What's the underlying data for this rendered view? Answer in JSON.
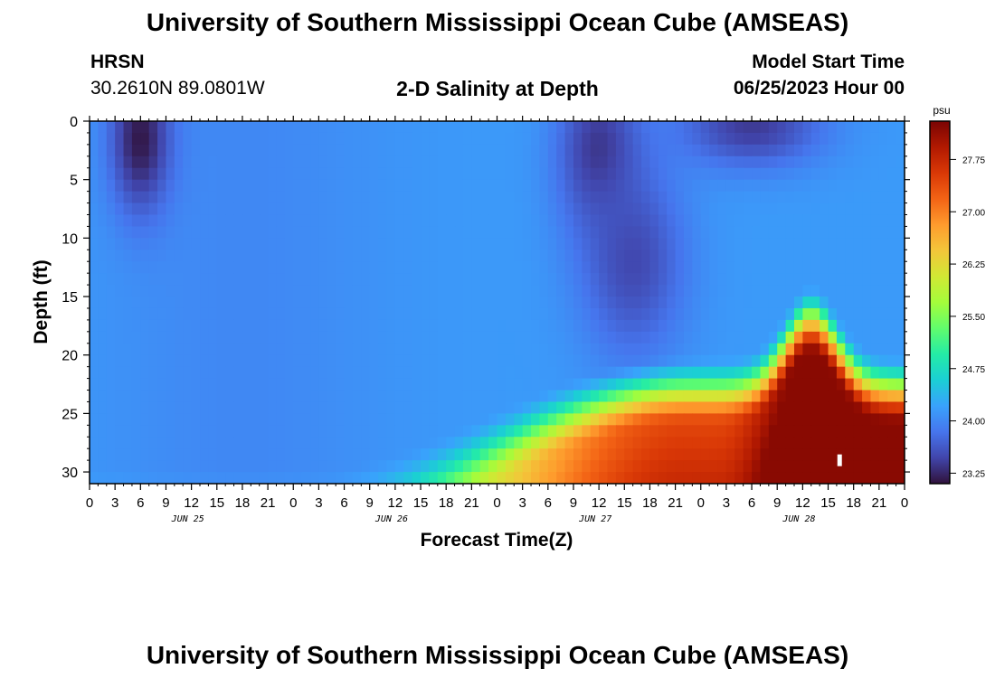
{
  "page": {
    "title": "University of Southern Mississippi Ocean Cube (AMSEAS)",
    "footer_title": "University of Southern Mississippi Ocean Cube (AMSEAS)",
    "station_name": "HRSN",
    "station_coords": "30.2610N  89.0801W",
    "subtitle": "2-D Salinity at Depth",
    "model_start_label": "Model Start Time",
    "model_start_value": "06/25/2023 Hour 00"
  },
  "chart_data": {
    "type": "heatmap",
    "xlabel": "Forecast Time(Z)",
    "ylabel": "Depth (ft)",
    "colorbar_unit": "psu",
    "x_hours_range": [
      0,
      96
    ],
    "x_tick_labels": [
      "0",
      "3",
      "6",
      "9",
      "12",
      "15",
      "18",
      "21",
      "0",
      "3",
      "6",
      "9",
      "12",
      "15",
      "18",
      "21",
      "0",
      "3",
      "6",
      "9",
      "12",
      "15",
      "18",
      "21",
      "0",
      "3",
      "6",
      "9",
      "12",
      "15",
      "18",
      "21",
      "0"
    ],
    "date_labels": [
      "JUN 25",
      "JUN 26",
      "JUN 27",
      "JUN 28"
    ],
    "y_ticks": [
      0,
      5,
      10,
      15,
      20,
      25,
      30
    ],
    "ylim": [
      0,
      31
    ],
    "y_inverted": true,
    "colorbar_ticks": [
      23.25,
      24.0,
      24.75,
      25.5,
      26.25,
      27.0,
      27.75
    ],
    "colorbar_tick_labels": [
      "23.25",
      "24.00",
      "24.75",
      "25.50",
      "26.25",
      "27.00",
      "27.75"
    ],
    "color_range": [
      23.1,
      28.3
    ],
    "colormap": [
      "#30123b",
      "#4145ab",
      "#4675ed",
      "#39a2fc",
      "#1bcfd4",
      "#24eca6",
      "#61fc6c",
      "#a4fc3b",
      "#d1e834",
      "#f3c63a",
      "#fe9b2d",
      "#f36315",
      "#d93806",
      "#b11901",
      "#7a0403"
    ],
    "background_value": 24.15,
    "features": [
      {
        "type": "blob",
        "hour": 6,
        "depth": 1.5,
        "hour_sigma": 2.5,
        "depth_sigma": 4.5,
        "value": 23.15
      },
      {
        "type": "blob",
        "hour": 60,
        "depth": 2.5,
        "hour_sigma": 3.5,
        "depth_sigma": 5,
        "value": 23.35
      },
      {
        "type": "blob",
        "hour": 64,
        "depth": 12,
        "hour_sigma": 4.5,
        "depth_sigma": 6,
        "value": 23.5
      },
      {
        "type": "blob",
        "hour": 78,
        "depth": 0.5,
        "hour_sigma": 6,
        "depth_sigma": 2.5,
        "value": 23.4
      },
      {
        "type": "bottom_front",
        "hour_start": 26,
        "hour_end": 70,
        "depth_start": 30,
        "depth_end": 26
      },
      {
        "type": "uplift",
        "hour": 85,
        "depth": 18,
        "hour_sigma": 3,
        "value_at_peak": 25.8
      },
      {
        "type": "bottom_max",
        "hour": 90,
        "depth": 30,
        "value": 28.1
      }
    ],
    "marker_value_note": "white tick near hour 88, depth 29"
  }
}
